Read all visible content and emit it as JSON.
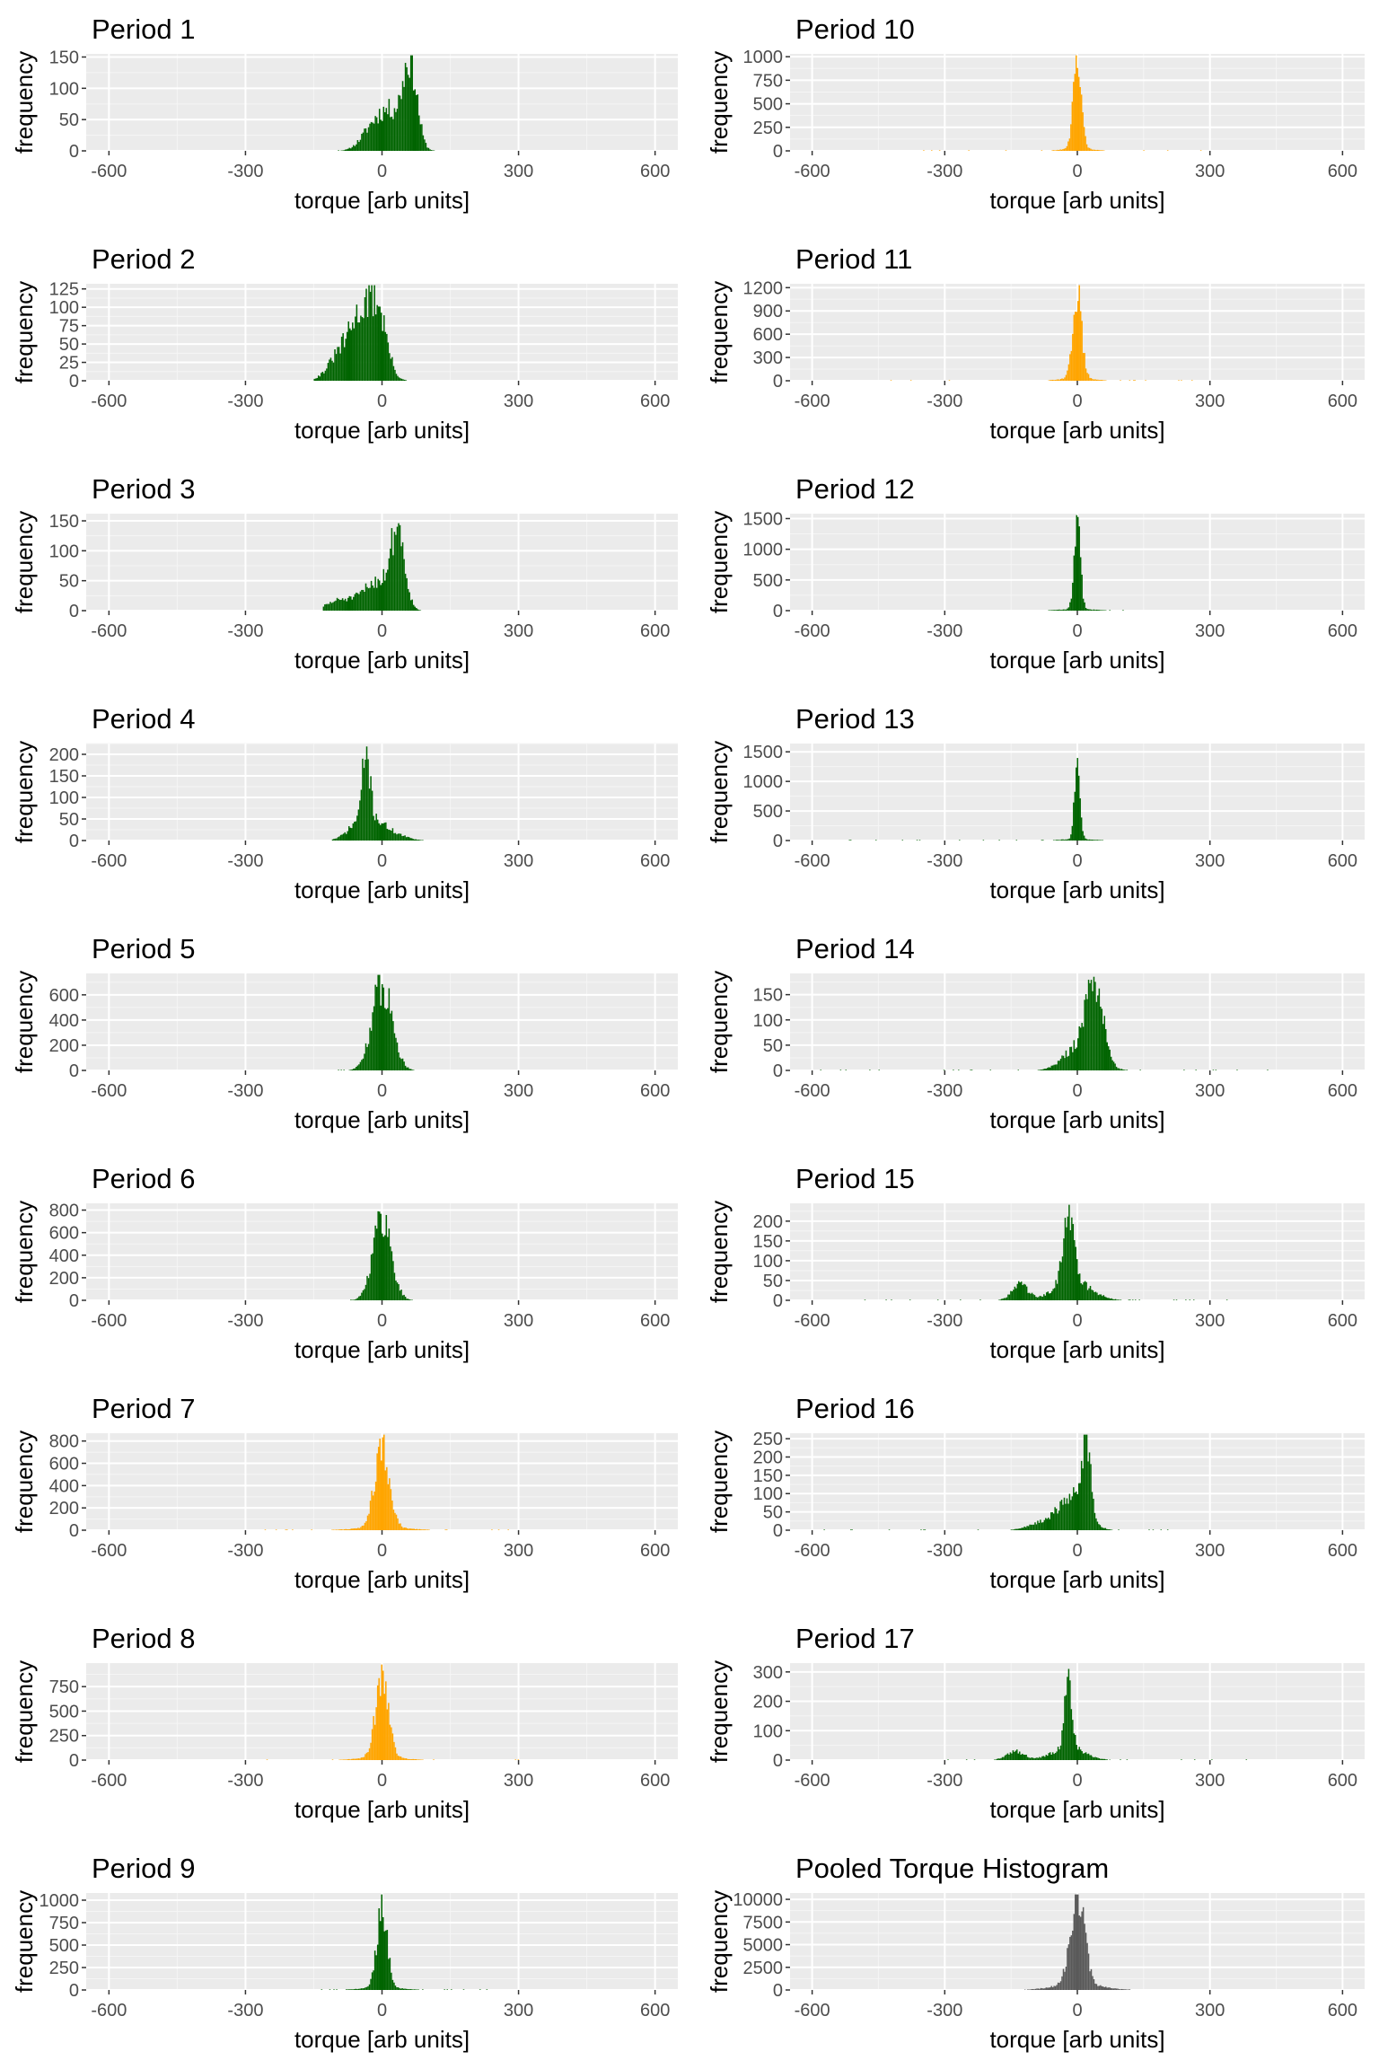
{
  "colors": {
    "panel_background": "#ebebeb",
    "grid_major": "#ffffff",
    "grid_minor": "#f5f5f5",
    "tick_text": "#4d4d4d",
    "green": "#006400",
    "orange": "#ffa500",
    "grey": "#595959"
  },
  "chart_data": [
    {
      "type": "bar",
      "title": "Period 1",
      "xlabel": "torque [arb units]",
      "ylabel": "frequency",
      "xlim": [
        -650,
        650
      ],
      "ylim": [
        0,
        155
      ],
      "xticks": [
        -600,
        -300,
        0,
        300,
        600
      ],
      "yticks": [
        0,
        50,
        100,
        150
      ],
      "color": "green",
      "components": [
        {
          "center": 62,
          "sd": 15,
          "peak": 135
        },
        {
          "center": 15,
          "sd": 30,
          "peak": 65
        },
        {
          "center": -30,
          "sd": 22,
          "peak": 18
        }
      ],
      "x_range": [
        -130,
        150
      ],
      "seed": 11
    },
    {
      "type": "bar",
      "title": "Period 10",
      "xlabel": "torque [arb units]",
      "ylabel": "frequency",
      "xlim": [
        -650,
        650
      ],
      "ylim": [
        0,
        1030
      ],
      "xticks": [
        -600,
        -300,
        0,
        300,
        600
      ],
      "yticks": [
        0,
        250,
        500,
        750,
        1000
      ],
      "color": "orange",
      "components": [
        {
          "center": 0,
          "sd": 9,
          "peak": 950
        },
        {
          "center": 0,
          "sd": 30,
          "peak": 30
        }
      ],
      "x_range": [
        -400,
        300
      ],
      "seed": 21
    },
    {
      "type": "bar",
      "title": "Period 2",
      "xlabel": "torque [arb units]",
      "ylabel": "frequency",
      "xlim": [
        -650,
        650
      ],
      "ylim": [
        0,
        132
      ],
      "xticks": [
        -600,
        -300,
        0,
        300,
        600
      ],
      "yticks": [
        0,
        25,
        50,
        75,
        100,
        125
      ],
      "color": "green",
      "components": [
        {
          "center": -40,
          "sd": 28,
          "peak": 95
        },
        {
          "center": -5,
          "sd": 18,
          "peak": 60
        },
        {
          "center": -95,
          "sd": 25,
          "peak": 30
        }
      ],
      "x_range": [
        -150,
        110
      ],
      "seed": 31
    },
    {
      "type": "bar",
      "title": "Period 11",
      "xlabel": "torque [arb units]",
      "ylabel": "frequency",
      "xlim": [
        -650,
        650
      ],
      "ylim": [
        0,
        1250
      ],
      "xticks": [
        -600,
        -300,
        0,
        300,
        600
      ],
      "yticks": [
        0,
        300,
        600,
        900,
        1200
      ],
      "color": "orange",
      "components": [
        {
          "center": 0,
          "sd": 10,
          "peak": 1140
        },
        {
          "center": 0,
          "sd": 35,
          "peak": 35
        }
      ],
      "x_range": [
        -450,
        300
      ],
      "seed": 41
    },
    {
      "type": "bar",
      "title": "Period 3",
      "xlabel": "torque [arb units]",
      "ylabel": "frequency",
      "xlim": [
        -650,
        650
      ],
      "ylim": [
        0,
        162
      ],
      "xticks": [
        -600,
        -300,
        0,
        300,
        600
      ],
      "yticks": [
        0,
        50,
        100,
        150
      ],
      "color": "green",
      "components": [
        {
          "center": 35,
          "sd": 15,
          "peak": 130
        },
        {
          "center": -10,
          "sd": 30,
          "peak": 50
        },
        {
          "center": -90,
          "sd": 30,
          "peak": 18
        }
      ],
      "x_range": [
        -130,
        85
      ],
      "seed": 51
    },
    {
      "type": "bar",
      "title": "Period 12",
      "xlabel": "torque [arb units]",
      "ylabel": "frequency",
      "xlim": [
        -650,
        650
      ],
      "ylim": [
        0,
        1580
      ],
      "xticks": [
        -600,
        -300,
        0,
        300,
        600
      ],
      "yticks": [
        0,
        500,
        1000,
        1500
      ],
      "color": "green",
      "components": [
        {
          "center": 0,
          "sd": 7,
          "peak": 1450
        },
        {
          "center": 0,
          "sd": 40,
          "peak": 25
        }
      ],
      "x_range": [
        -120,
        150
      ],
      "seed": 61
    },
    {
      "type": "bar",
      "title": "Period 4",
      "xlabel": "torque [arb units]",
      "ylabel": "frequency",
      "xlim": [
        -650,
        650
      ],
      "ylim": [
        0,
        225
      ],
      "xticks": [
        -600,
        -300,
        0,
        300,
        600
      ],
      "yticks": [
        0,
        50,
        100,
        150,
        200
      ],
      "color": "green",
      "components": [
        {
          "center": -35,
          "sd": 8,
          "peak": 150
        },
        {
          "center": -35,
          "sd": 30,
          "peak": 60
        },
        {
          "center": 20,
          "sd": 30,
          "peak": 15
        }
      ],
      "x_range": [
        -110,
        95
      ],
      "seed": 71
    },
    {
      "type": "bar",
      "title": "Period 13",
      "xlabel": "torque [arb units]",
      "ylabel": "frequency",
      "xlim": [
        -650,
        650
      ],
      "ylim": [
        0,
        1640
      ],
      "xticks": [
        -600,
        -300,
        0,
        300,
        600
      ],
      "yticks": [
        0,
        500,
        1000,
        1500
      ],
      "color": "green",
      "components": [
        {
          "center": 0,
          "sd": 6,
          "peak": 1540
        },
        {
          "center": 0,
          "sd": 35,
          "peak": 25
        }
      ],
      "x_range": [
        -550,
        150
      ],
      "seed": 81
    },
    {
      "type": "bar",
      "title": "Period 5",
      "xlabel": "torque [arb units]",
      "ylabel": "frequency",
      "xlim": [
        -650,
        650
      ],
      "ylim": [
        0,
        770
      ],
      "xticks": [
        -600,
        -300,
        0,
        300,
        600
      ],
      "yticks": [
        0,
        200,
        400,
        600
      ],
      "color": "green",
      "components": [
        {
          "center": 0,
          "sd": 22,
          "peak": 700
        }
      ],
      "x_range": [
        -100,
        110
      ],
      "seed": 91
    },
    {
      "type": "bar",
      "title": "Period 14",
      "xlabel": "torque [arb units]",
      "ylabel": "frequency",
      "xlim": [
        -650,
        650
      ],
      "ylim": [
        0,
        192
      ],
      "xticks": [
        -600,
        -300,
        0,
        300,
        600
      ],
      "yticks": [
        0,
        50,
        100,
        150
      ],
      "color": "green",
      "components": [
        {
          "center": 40,
          "sd": 18,
          "peak": 150
        },
        {
          "center": 10,
          "sd": 35,
          "peak": 55
        }
      ],
      "x_range": [
        -600,
        590
      ],
      "seed": 101
    },
    {
      "type": "bar",
      "title": "Period 6",
      "xlabel": "torque [arb units]",
      "ylabel": "frequency",
      "xlim": [
        -650,
        650
      ],
      "ylim": [
        0,
        860
      ],
      "xticks": [
        -600,
        -300,
        0,
        300,
        600
      ],
      "yticks": [
        0,
        200,
        400,
        600,
        800
      ],
      "color": "green",
      "components": [
        {
          "center": 0,
          "sd": 20,
          "peak": 760
        }
      ],
      "x_range": [
        -100,
        110
      ],
      "seed": 111
    },
    {
      "type": "bar",
      "title": "Period 15",
      "xlabel": "torque [arb units]",
      "ylabel": "frequency",
      "xlim": [
        -650,
        650
      ],
      "ylim": [
        0,
        245
      ],
      "xticks": [
        -600,
        -300,
        0,
        300,
        600
      ],
      "yticks": [
        0,
        50,
        100,
        150,
        200
      ],
      "color": "green",
      "components": [
        {
          "center": -20,
          "sd": 12,
          "peak": 200
        },
        {
          "center": -10,
          "sd": 40,
          "peak": 50
        },
        {
          "center": -130,
          "sd": 18,
          "peak": 40
        }
      ],
      "x_range": [
        -500,
        380
      ],
      "seed": 121
    },
    {
      "type": "bar",
      "title": "Period 7",
      "xlabel": "torque [arb units]",
      "ylabel": "frequency",
      "xlim": [
        -650,
        650
      ],
      "ylim": [
        0,
        870
      ],
      "xticks": [
        -600,
        -300,
        0,
        300,
        600
      ],
      "yticks": [
        0,
        200,
        400,
        600,
        800
      ],
      "color": "orange",
      "components": [
        {
          "center": 0,
          "sd": 16,
          "peak": 760
        },
        {
          "center": 0,
          "sd": 55,
          "peak": 25
        }
      ],
      "x_range": [
        -300,
        380
      ],
      "seed": 131
    },
    {
      "type": "bar",
      "title": "Period 16",
      "xlabel": "torque [arb units]",
      "ylabel": "frequency",
      "xlim": [
        -650,
        650
      ],
      "ylim": [
        0,
        265
      ],
      "xticks": [
        -600,
        -300,
        0,
        300,
        600
      ],
      "yticks": [
        0,
        50,
        100,
        150,
        200,
        250
      ],
      "color": "green",
      "components": [
        {
          "center": 20,
          "sd": 10,
          "peak": 200
        },
        {
          "center": -10,
          "sd": 30,
          "peak": 100
        },
        {
          "center": -80,
          "sd": 30,
          "peak": 20
        }
      ],
      "x_range": [
        -580,
        230
      ],
      "seed": 141
    },
    {
      "type": "bar",
      "title": "Period 8",
      "xlabel": "torque [arb units]",
      "ylabel": "frequency",
      "xlim": [
        -650,
        650
      ],
      "ylim": [
        0,
        990
      ],
      "xticks": [
        -600,
        -300,
        0,
        300,
        600
      ],
      "yticks": [
        0,
        250,
        500,
        750
      ],
      "color": "orange",
      "components": [
        {
          "center": 0,
          "sd": 14,
          "peak": 860
        },
        {
          "center": 0,
          "sd": 45,
          "peak": 30
        }
      ],
      "x_range": [
        -320,
        300
      ],
      "seed": 151
    },
    {
      "type": "bar",
      "title": "Period 17",
      "xlabel": "torque [arb units]",
      "ylabel": "frequency",
      "xlim": [
        -650,
        650
      ],
      "ylim": [
        0,
        330
      ],
      "xticks": [
        -600,
        -300,
        0,
        300,
        600
      ],
      "yticks": [
        0,
        100,
        200,
        300
      ],
      "color": "green",
      "components": [
        {
          "center": -20,
          "sd": 8,
          "peak": 250
        },
        {
          "center": -20,
          "sd": 35,
          "peak": 45
        },
        {
          "center": -140,
          "sd": 20,
          "peak": 30
        }
      ],
      "x_range": [
        -300,
        390
      ],
      "seed": 161
    },
    {
      "type": "bar",
      "title": "Period 9",
      "xlabel": "torque [arb units]",
      "ylabel": "frequency",
      "xlim": [
        -650,
        650
      ],
      "ylim": [
        0,
        1080
      ],
      "xticks": [
        -600,
        -300,
        0,
        300,
        600
      ],
      "yticks": [
        0,
        250,
        500,
        750,
        1000
      ],
      "color": "green",
      "components": [
        {
          "center": 0,
          "sd": 11,
          "peak": 970
        },
        {
          "center": 0,
          "sd": 40,
          "peak": 30
        }
      ],
      "x_range": [
        -200,
        250
      ],
      "seed": 171
    },
    {
      "type": "bar",
      "title": "Pooled Torque Histogram",
      "xlabel": "torque [arb units]",
      "ylabel": "frequency",
      "xlim": [
        -650,
        650
      ],
      "ylim": [
        0,
        10700
      ],
      "xticks": [
        -600,
        -300,
        0,
        300,
        600
      ],
      "yticks": [
        0,
        2500,
        5000,
        7500,
        10000
      ],
      "color": "grey",
      "components": [
        {
          "center": 0,
          "sd": 16,
          "peak": 9800
        },
        {
          "center": 0,
          "sd": 50,
          "peak": 700
        }
      ],
      "x_range": [
        -180,
        160
      ],
      "seed": 181
    }
  ]
}
